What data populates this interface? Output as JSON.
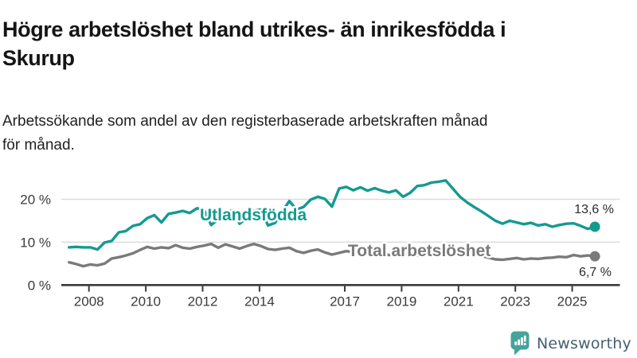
{
  "header": {
    "title": "Högre arbetslöshet bland utrikes- än inrikesfödda i Skurup",
    "title_line1": "Högre arbetslöshet bland utrikes- än inrikesfödda i",
    "title_line2": "Skurup",
    "subtitle": "Arbetssökande som andel av den registerbaserade arbetskraften månad för månad.",
    "subtitle_line1": "Arbetssökande som andel av den registerbaserade arbetskraften månad",
    "subtitle_line2": "för månad."
  },
  "chart_data": {
    "type": "line",
    "title": "Högre arbetslöshet bland utrikes- än inrikesfödda i Skurup",
    "subtitle": "Arbetssökande som andel av den registerbaserade arbetskraften månad för månad.",
    "grid": "horizontal",
    "legend_position": "inline-labels",
    "x_axis": {
      "tick_years": [
        2008,
        2010,
        2012,
        2014,
        2017,
        2019,
        2021,
        2023,
        2025
      ],
      "tick_labels": [
        "2008",
        "2010",
        "2012",
        "2014",
        "2017",
        "2019",
        "2021",
        "2023",
        "2025"
      ]
    },
    "y_axis": {
      "ticks": [
        0,
        10,
        20
      ],
      "tick_labels": [
        "0 %",
        "10 %",
        "20 %"
      ],
      "unit": "%"
    },
    "xlim": [
      2007.3,
      2026.3
    ],
    "ylim": [
      0,
      27
    ],
    "x_start": 2007.3,
    "x_step": 0.25,
    "x_end": 2025.8,
    "series": [
      {
        "name": "Utlandsfödda",
        "color": "#149a90",
        "end_label": "13,6 %",
        "end_value": 13.6,
        "values": [
          8.8,
          8.9,
          8.8,
          8.8,
          8.3,
          9.9,
          10.3,
          12.3,
          12.6,
          13.8,
          14.2,
          15.6,
          16.3,
          14.6,
          16.6,
          16.9,
          17.3,
          16.8,
          17.9,
          17.5,
          14.0,
          15.3,
          17.0,
          17.4,
          14.3,
          15.6,
          17.3,
          17.6,
          13.9,
          14.5,
          17.2,
          19.6,
          17.6,
          18.2,
          19.9,
          20.6,
          20.1,
          18.3,
          22.5,
          22.9,
          22.1,
          22.8,
          22.0,
          22.6,
          22.0,
          21.6,
          22.1,
          20.6,
          21.5,
          23.1,
          23.3,
          23.9,
          24.1,
          24.4,
          22.5,
          20.6,
          19.3,
          18.2,
          17.2,
          16.1,
          15.0,
          14.3,
          15.0,
          14.6,
          14.2,
          14.5,
          13.9,
          14.2,
          13.6,
          14.0,
          14.3,
          14.4,
          13.8,
          13.1,
          13.6
        ]
      },
      {
        "name": "Total arbetslöshet",
        "color": "#7a7a7a",
        "end_label": "6,7 %",
        "end_value": 6.7,
        "values": [
          5.3,
          4.9,
          4.4,
          4.8,
          4.6,
          5.0,
          6.2,
          6.5,
          6.9,
          7.4,
          8.2,
          8.9,
          8.5,
          8.8,
          8.6,
          9.3,
          8.7,
          8.5,
          8.9,
          9.2,
          9.6,
          8.7,
          9.5,
          9.0,
          8.5,
          9.1,
          9.6,
          9.1,
          8.4,
          8.2,
          8.5,
          8.7,
          7.9,
          7.5,
          8.0,
          8.3,
          7.6,
          7.1,
          7.5,
          7.9,
          7.7,
          7.4,
          7.2,
          7.5,
          7.3,
          7.0,
          7.2,
          7.5,
          7.2,
          6.9,
          7.3,
          7.8,
          8.2,
          8.0,
          8.4,
          8.1,
          7.7,
          7.2,
          6.8,
          6.4,
          6.0,
          5.9,
          6.1,
          6.3,
          6.0,
          6.2,
          6.1,
          6.3,
          6.4,
          6.6,
          6.5,
          7.0,
          6.7,
          6.9,
          6.7
        ]
      }
    ],
    "colors": {
      "grid": "#dcdcdc",
      "axis": "#3a3a3a",
      "tick_label": "#3b3b3b",
      "end_label": "#2b2b2b"
    }
  },
  "footer": {
    "brand": "Newsworthy",
    "brand_text_color": "#455f74",
    "logo_icon_color": "#46a39c"
  }
}
